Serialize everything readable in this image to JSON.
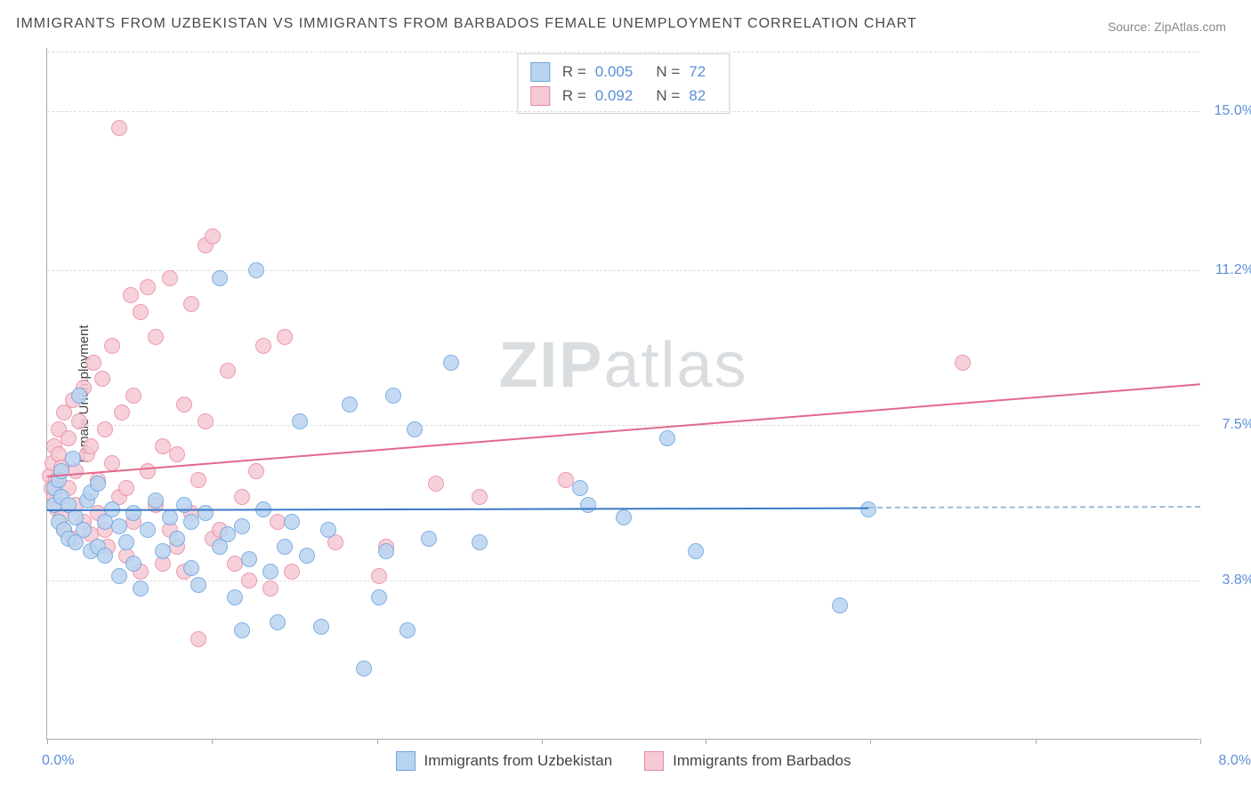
{
  "title": "IMMIGRANTS FROM UZBEKISTAN VS IMMIGRANTS FROM BARBADOS FEMALE UNEMPLOYMENT CORRELATION CHART",
  "source": "Source: ZipAtlas.com",
  "watermark_bold": "ZIP",
  "watermark_light": "atlas",
  "y_axis_title": "Female Unemployment",
  "x_min": 0.0,
  "x_max": 8.0,
  "x_label_min": "0.0%",
  "x_label_max": "8.0%",
  "y_min": 0.0,
  "y_max": 16.5,
  "y_ticks": [
    {
      "v": 3.8,
      "label": "3.8%"
    },
    {
      "v": 7.5,
      "label": "7.5%"
    },
    {
      "v": 11.2,
      "label": "11.2%"
    },
    {
      "v": 15.0,
      "label": "15.0%"
    }
  ],
  "x_tick_positions": [
    0.0,
    1.14,
    2.29,
    3.43,
    4.57,
    5.71,
    6.86,
    8.0
  ],
  "series_a": {
    "name": "Immigrants from Uzbekistan",
    "fill": "#b9d4f0",
    "stroke": "#6ea3dd",
    "line": "#3b78c4",
    "R_label": "R =",
    "R": "0.005",
    "N_label": "N =",
    "N": "72",
    "trend": {
      "x0": 0.0,
      "y0": 5.5,
      "x1": 5.7,
      "y1": 5.55,
      "dash_to_x": 8.0
    },
    "points": [
      [
        0.05,
        6.0
      ],
      [
        0.05,
        5.6
      ],
      [
        0.08,
        6.2
      ],
      [
        0.08,
        5.2
      ],
      [
        0.1,
        5.8
      ],
      [
        0.1,
        6.4
      ],
      [
        0.12,
        5.0
      ],
      [
        0.15,
        4.8
      ],
      [
        0.15,
        5.6
      ],
      [
        0.18,
        6.7
      ],
      [
        0.2,
        4.7
      ],
      [
        0.2,
        5.3
      ],
      [
        0.22,
        8.2
      ],
      [
        0.25,
        5.0
      ],
      [
        0.28,
        5.7
      ],
      [
        0.3,
        4.5
      ],
      [
        0.3,
        5.9
      ],
      [
        0.35,
        4.6
      ],
      [
        0.35,
        6.1
      ],
      [
        0.4,
        5.2
      ],
      [
        0.4,
        4.4
      ],
      [
        0.45,
        5.5
      ],
      [
        0.5,
        3.9
      ],
      [
        0.5,
        5.1
      ],
      [
        0.55,
        4.7
      ],
      [
        0.6,
        5.4
      ],
      [
        0.6,
        4.2
      ],
      [
        0.65,
        3.6
      ],
      [
        0.7,
        5.0
      ],
      [
        0.75,
        5.7
      ],
      [
        0.8,
        4.5
      ],
      [
        0.85,
        5.3
      ],
      [
        0.9,
        4.8
      ],
      [
        0.95,
        5.6
      ],
      [
        1.0,
        4.1
      ],
      [
        1.0,
        5.2
      ],
      [
        1.05,
        3.7
      ],
      [
        1.1,
        5.4
      ],
      [
        1.2,
        4.6
      ],
      [
        1.2,
        11.0
      ],
      [
        1.25,
        4.9
      ],
      [
        1.3,
        3.4
      ],
      [
        1.35,
        2.6
      ],
      [
        1.35,
        5.1
      ],
      [
        1.4,
        4.3
      ],
      [
        1.45,
        11.2
      ],
      [
        1.5,
        5.5
      ],
      [
        1.55,
        4.0
      ],
      [
        1.6,
        2.8
      ],
      [
        1.65,
        4.6
      ],
      [
        1.7,
        5.2
      ],
      [
        1.75,
        7.6
      ],
      [
        1.8,
        4.4
      ],
      [
        1.9,
        2.7
      ],
      [
        1.95,
        5.0
      ],
      [
        2.1,
        8.0
      ],
      [
        2.2,
        1.7
      ],
      [
        2.3,
        3.4
      ],
      [
        2.35,
        4.5
      ],
      [
        2.4,
        8.2
      ],
      [
        2.5,
        2.6
      ],
      [
        2.55,
        7.4
      ],
      [
        2.65,
        4.8
      ],
      [
        2.8,
        9.0
      ],
      [
        3.0,
        4.7
      ],
      [
        3.7,
        6.0
      ],
      [
        3.75,
        5.6
      ],
      [
        4.0,
        5.3
      ],
      [
        4.3,
        7.2
      ],
      [
        4.5,
        4.5
      ],
      [
        5.5,
        3.2
      ],
      [
        5.7,
        5.5
      ]
    ]
  },
  "series_b": {
    "name": "Immigrants from Barbados",
    "fill": "#f6c9d4",
    "stroke": "#e88aa3",
    "line": "#e26a8a",
    "R_label": "R =",
    "R": "0.092",
    "N_label": "N =",
    "N": "82",
    "trend": {
      "x0": 0.0,
      "y0": 6.3,
      "x1": 8.0,
      "y1": 8.5
    },
    "points": [
      [
        0.02,
        6.3
      ],
      [
        0.03,
        6.0
      ],
      [
        0.04,
        6.6
      ],
      [
        0.05,
        5.8
      ],
      [
        0.05,
        7.0
      ],
      [
        0.06,
        6.2
      ],
      [
        0.07,
        5.5
      ],
      [
        0.08,
        6.8
      ],
      [
        0.08,
        7.4
      ],
      [
        0.1,
        5.3
      ],
      [
        0.1,
        6.5
      ],
      [
        0.12,
        7.8
      ],
      [
        0.12,
        5.0
      ],
      [
        0.15,
        6.0
      ],
      [
        0.15,
        7.2
      ],
      [
        0.18,
        4.8
      ],
      [
        0.18,
        8.1
      ],
      [
        0.2,
        6.4
      ],
      [
        0.2,
        5.6
      ],
      [
        0.22,
        7.6
      ],
      [
        0.25,
        5.2
      ],
      [
        0.25,
        8.4
      ],
      [
        0.28,
        6.8
      ],
      [
        0.3,
        4.9
      ],
      [
        0.3,
        7.0
      ],
      [
        0.32,
        9.0
      ],
      [
        0.35,
        5.4
      ],
      [
        0.35,
        6.2
      ],
      [
        0.38,
        8.6
      ],
      [
        0.4,
        5.0
      ],
      [
        0.4,
        7.4
      ],
      [
        0.42,
        4.6
      ],
      [
        0.45,
        6.6
      ],
      [
        0.45,
        9.4
      ],
      [
        0.5,
        5.8
      ],
      [
        0.5,
        14.6
      ],
      [
        0.52,
        7.8
      ],
      [
        0.55,
        4.4
      ],
      [
        0.55,
        6.0
      ],
      [
        0.58,
        10.6
      ],
      [
        0.6,
        5.2
      ],
      [
        0.6,
        8.2
      ],
      [
        0.65,
        4.0
      ],
      [
        0.65,
        10.2
      ],
      [
        0.7,
        6.4
      ],
      [
        0.7,
        10.8
      ],
      [
        0.75,
        5.6
      ],
      [
        0.75,
        9.6
      ],
      [
        0.8,
        4.2
      ],
      [
        0.8,
        7.0
      ],
      [
        0.85,
        11.0
      ],
      [
        0.85,
        5.0
      ],
      [
        0.9,
        6.8
      ],
      [
        0.9,
        4.6
      ],
      [
        0.95,
        8.0
      ],
      [
        0.95,
        4.0
      ],
      [
        1.0,
        10.4
      ],
      [
        1.0,
        5.4
      ],
      [
        1.05,
        2.4
      ],
      [
        1.05,
        6.2
      ],
      [
        1.1,
        7.6
      ],
      [
        1.1,
        11.8
      ],
      [
        1.15,
        4.8
      ],
      [
        1.15,
        12.0
      ],
      [
        1.2,
        5.0
      ],
      [
        1.25,
        8.8
      ],
      [
        1.3,
        4.2
      ],
      [
        1.35,
        5.8
      ],
      [
        1.4,
        3.8
      ],
      [
        1.45,
        6.4
      ],
      [
        1.5,
        9.4
      ],
      [
        1.55,
        3.6
      ],
      [
        1.6,
        5.2
      ],
      [
        1.65,
        9.6
      ],
      [
        1.7,
        4.0
      ],
      [
        2.0,
        4.7
      ],
      [
        2.3,
        3.9
      ],
      [
        2.35,
        4.6
      ],
      [
        2.7,
        6.1
      ],
      [
        3.0,
        5.8
      ],
      [
        3.6,
        6.2
      ],
      [
        6.35,
        9.0
      ]
    ]
  },
  "marker_radius": 9,
  "legend_swatch_size": 22
}
